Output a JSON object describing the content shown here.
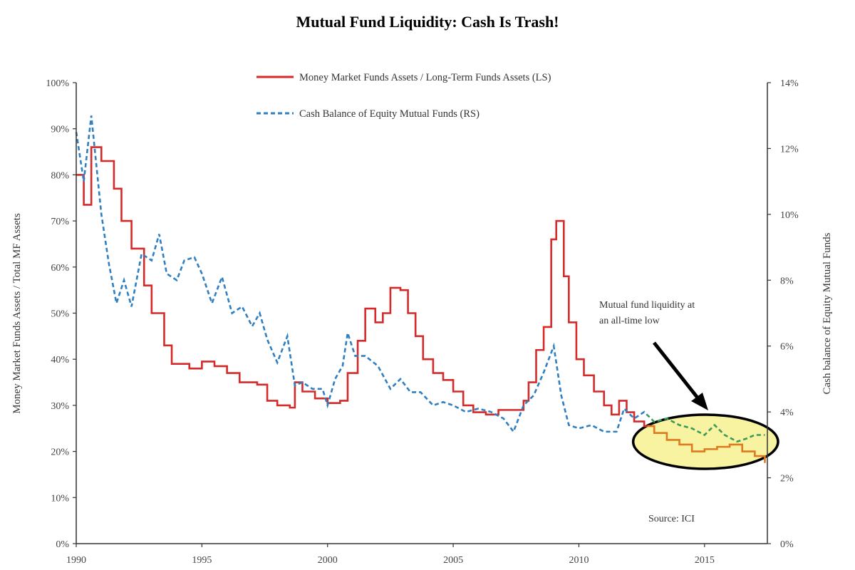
{
  "chart_data": {
    "type": "line",
    "title": "Mutual Fund Liquidity: Cash Is Trash!",
    "xlabel": "",
    "ylabel_left": "Money Market Funds Assets / Total MF Assets",
    "ylabel_right": "Cash balance of Equity Mutual Funds",
    "xlim": [
      1990,
      2017.5
    ],
    "ylim_left": [
      0,
      100
    ],
    "ylim_right": [
      0,
      14
    ],
    "x_ticks": [
      "1990",
      "1995",
      "2000",
      "2005",
      "2010",
      "2015"
    ],
    "x_tick_values": [
      1990,
      1995,
      2000,
      2005,
      2010,
      2015
    ],
    "y_left_ticks": [
      "0%",
      "10%",
      "20%",
      "30%",
      "40%",
      "50%",
      "60%",
      "70%",
      "80%",
      "90%",
      "100%"
    ],
    "y_left_tick_values": [
      0,
      10,
      20,
      30,
      40,
      50,
      60,
      70,
      80,
      90,
      100
    ],
    "y_right_ticks": [
      "0%",
      "2%",
      "4%",
      "6%",
      "8%",
      "10%",
      "12%",
      "14%"
    ],
    "y_right_tick_values": [
      0,
      2,
      4,
      6,
      8,
      10,
      12,
      14
    ],
    "grid": false,
    "legend_position": "top-center",
    "series": [
      {
        "name": "Money Market Funds Assets / Long-Term Funds Assets (LS)",
        "axis": "left",
        "color": "#d42a2a",
        "style": "solid-step",
        "x": [
          1990.0,
          1990.3,
          1990.6,
          1991.0,
          1991.5,
          1991.8,
          1992.2,
          1992.7,
          1993.0,
          1993.5,
          1993.8,
          1994.2,
          1994.5,
          1995.0,
          1995.5,
          1996.0,
          1996.5,
          1997.2,
          1997.6,
          1998.0,
          1998.5,
          1998.7,
          1999.0,
          1999.5,
          2000.0,
          2000.5,
          2000.8,
          2001.2,
          2001.5,
          2001.9,
          2002.2,
          2002.5,
          2002.9,
          2003.2,
          2003.5,
          2003.8,
          2004.2,
          2004.6,
          2005.0,
          2005.4,
          2005.8,
          2006.3,
          2006.8,
          2007.5,
          2007.8,
          2008.0,
          2008.3,
          2008.6,
          2008.9,
          2009.1,
          2009.4,
          2009.6,
          2009.9,
          2010.2,
          2010.6,
          2011.0,
          2011.3,
          2011.6,
          2011.9,
          2012.2,
          2012.6,
          2013.0,
          2013.5,
          2014.0,
          2014.5,
          2015.0,
          2015.5,
          2016.0,
          2016.5,
          2017.0,
          2017.4
        ],
        "values": [
          80,
          73.5,
          86,
          83,
          77,
          70,
          64,
          56,
          50,
          43,
          39,
          39,
          38,
          39.5,
          38.5,
          37,
          35,
          34.5,
          31,
          30,
          29.5,
          35,
          33,
          31.5,
          30.5,
          31,
          37,
          44,
          51,
          48,
          50,
          55.5,
          55,
          50,
          45,
          40,
          37,
          35.5,
          33,
          30,
          28.5,
          28,
          29,
          29,
          31,
          35,
          42,
          47,
          66,
          70,
          58,
          48,
          40,
          36.5,
          33,
          30,
          28,
          31,
          28.5,
          26.5,
          25.5,
          24,
          22.5,
          21.5,
          20,
          20.5,
          21,
          21.5,
          20,
          19,
          17.5
        ]
      },
      {
        "name": "Cash Balance of Equity Mutual Funds (RS)",
        "axis": "right",
        "color": "#2f7fc1",
        "style": "dashed",
        "x": [
          1990.0,
          1990.3,
          1990.6,
          1991.0,
          1991.3,
          1991.6,
          1991.9,
          1992.2,
          1992.6,
          1993.0,
          1993.3,
          1993.6,
          1994.0,
          1994.3,
          1994.7,
          1995.0,
          1995.4,
          1995.8,
          1996.2,
          1996.6,
          1997.0,
          1997.3,
          1997.6,
          1998.0,
          1998.4,
          1998.7,
          1999.0,
          1999.4,
          1999.8,
          2000.0,
          2000.3,
          2000.6,
          2000.8,
          2001.1,
          2001.5,
          2002.0,
          2002.5,
          2002.9,
          2003.3,
          2003.7,
          2004.2,
          2004.6,
          2005.0,
          2005.5,
          2006.0,
          2006.5,
          2007.0,
          2007.4,
          2007.8,
          2008.2,
          2008.6,
          2009.0,
          2009.3,
          2009.6,
          2010.0,
          2010.5,
          2011.0,
          2011.5,
          2011.8,
          2012.2,
          2012.6,
          2013.0,
          2013.5,
          2014.0,
          2014.5,
          2015.0,
          2015.4,
          2015.8,
          2016.3,
          2016.7,
          2017.0,
          2017.4
        ],
        "values": [
          12.5,
          11,
          13,
          10,
          8.5,
          7.3,
          8,
          7.2,
          8.8,
          8.6,
          9.4,
          8.2,
          8,
          8.6,
          8.7,
          8.2,
          7.3,
          8.1,
          7,
          7.2,
          6.6,
          7,
          6.2,
          5.5,
          6.3,
          4.8,
          4.9,
          4.7,
          4.7,
          4.2,
          5.0,
          5.4,
          6.4,
          5.7,
          5.7,
          5.4,
          4.7,
          5,
          4.6,
          4.6,
          4.2,
          4.3,
          4.2,
          4.0,
          4.1,
          4.0,
          3.8,
          3.4,
          4.2,
          4.5,
          5.2,
          6,
          4.5,
          3.6,
          3.5,
          3.6,
          3.4,
          3.4,
          4.1,
          3.8,
          4,
          3.7,
          3.8,
          3.6,
          3.5,
          3.3,
          3.6,
          3.3,
          3.1,
          3.2,
          3.3,
          3.3
        ]
      }
    ],
    "highlight": {
      "x_range": [
        2012.5,
        2017.5
      ],
      "fill": "#f7f3a0",
      "stroke": "#000000"
    },
    "annotations": {
      "callout": [
        "Mutual fund liquidity at",
        "an all-time low"
      ],
      "source": "Source: ICI"
    }
  }
}
